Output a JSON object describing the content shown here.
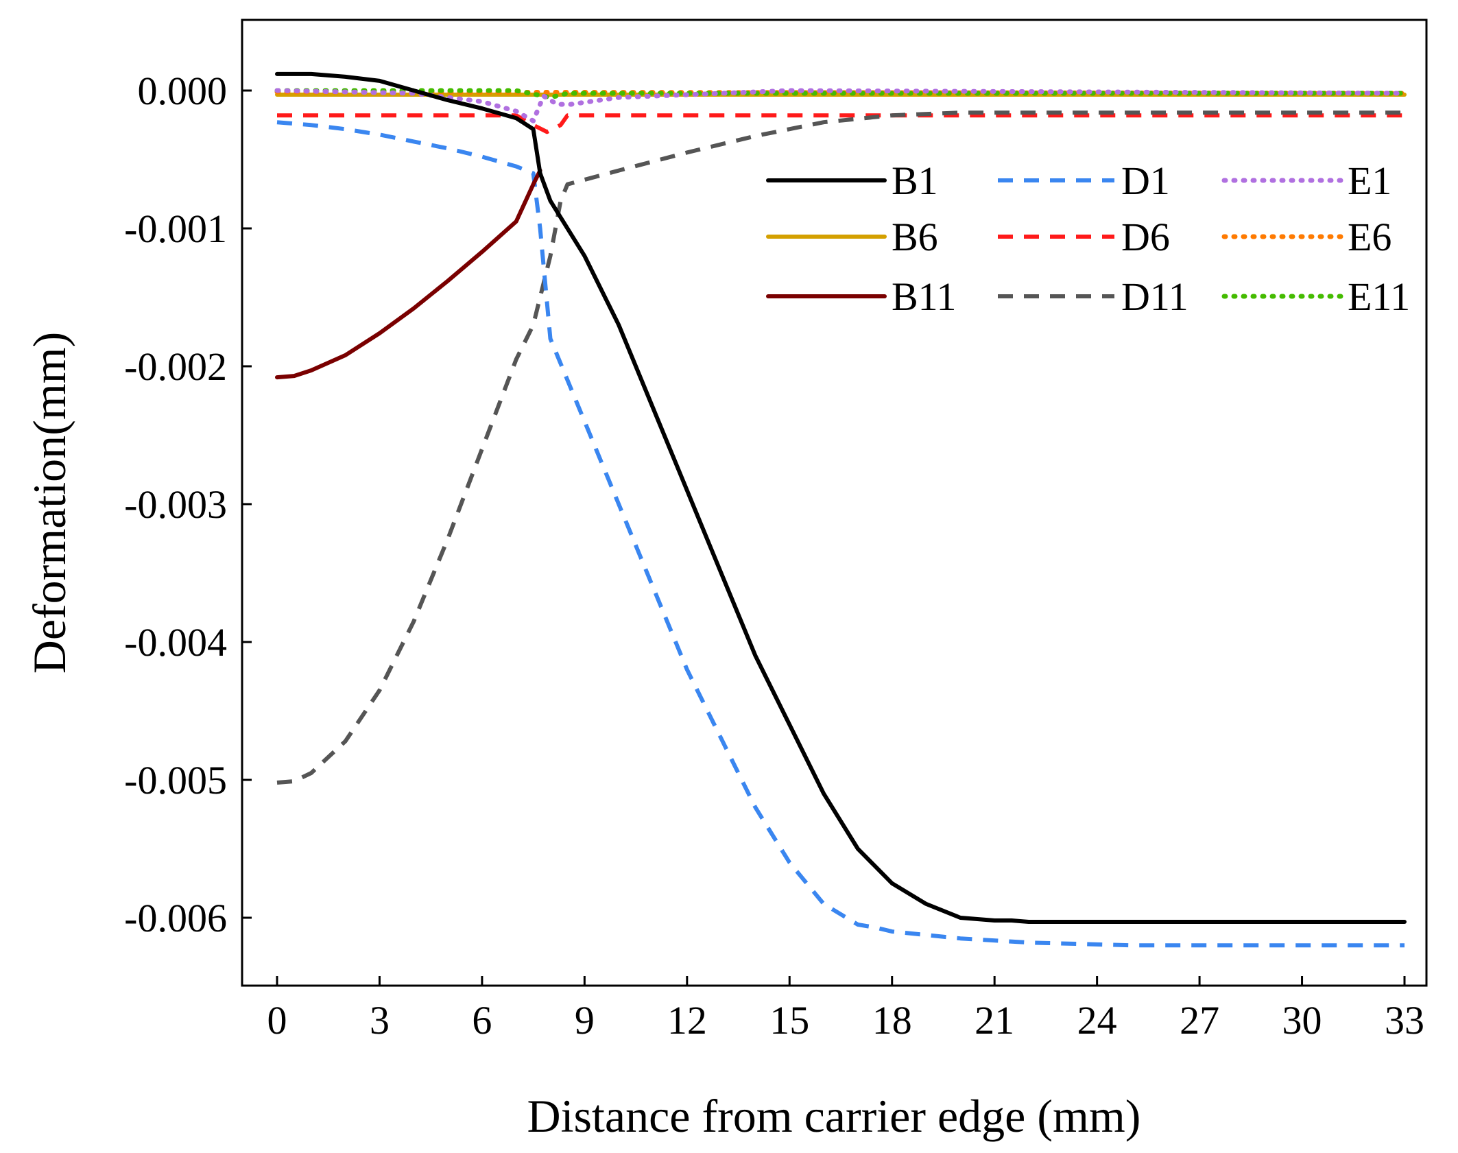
{
  "chart_data": {
    "type": "line",
    "title": "",
    "xlabel": "Distance from carrier edge (mm)",
    "ylabel": "Deformation(mm)",
    "xlim": [
      -1,
      34
    ],
    "ylim": [
      -0.0065,
      0.0005
    ],
    "xticks": [
      0,
      3,
      6,
      9,
      12,
      15,
      18,
      21,
      24,
      27,
      30,
      33
    ],
    "xtick_labels": [
      "0",
      "3",
      "6",
      "9",
      "12",
      "15",
      "18",
      "21",
      "24",
      "27",
      "30",
      "33"
    ],
    "yticks": [
      0.0,
      -0.001,
      -0.002,
      -0.003,
      -0.004,
      -0.005,
      -0.006
    ],
    "ytick_labels": [
      "0.000",
      "-0.001",
      "-0.002",
      "-0.003",
      "-0.004",
      "-0.005",
      "-0.006"
    ],
    "grid": false,
    "legend_position": "top-right",
    "series": [
      {
        "name": "B1",
        "color": "#000000",
        "style": "solid",
        "x": [
          0,
          1,
          2,
          3,
          4,
          5,
          6,
          7,
          7.5,
          7.7,
          8,
          9,
          10,
          11,
          12,
          13,
          14,
          15,
          16,
          17,
          18,
          19,
          20,
          21,
          21.5,
          22,
          25,
          28,
          33
        ],
        "y": [
          0.00012,
          0.00012,
          0.0001,
          7e-05,
          0.0,
          -7e-05,
          -0.00013,
          -0.0002,
          -0.00028,
          -0.0006,
          -0.0008,
          -0.0012,
          -0.0017,
          -0.0023,
          -0.0029,
          -0.0035,
          -0.0041,
          -0.0046,
          -0.0051,
          -0.0055,
          -0.00575,
          -0.0059,
          -0.006,
          -0.00602,
          -0.00602,
          -0.00603,
          -0.00603,
          -0.00603,
          -0.00603
        ]
      },
      {
        "name": "B6",
        "color": "#D4A000",
        "style": "solid",
        "x": [
          0,
          33
        ],
        "y": [
          -3e-05,
          -3e-05
        ]
      },
      {
        "name": "B11",
        "color": "#7A0000",
        "style": "solid",
        "x": [
          0,
          0.5,
          1,
          2,
          3,
          4,
          5,
          6,
          7,
          7.5,
          7.7
        ],
        "y": [
          -0.00208,
          -0.00207,
          -0.00203,
          -0.00192,
          -0.00176,
          -0.00158,
          -0.00138,
          -0.00117,
          -0.00095,
          -0.00068,
          -0.00058
        ]
      },
      {
        "name": "D1",
        "color": "#3A86F0",
        "style": "dashed",
        "x": [
          0,
          1,
          2,
          3,
          4,
          5,
          6,
          7,
          7.5,
          7.7,
          8,
          9,
          10,
          11,
          12,
          13,
          14,
          15,
          16,
          17,
          17.5,
          18,
          20,
          22,
          25,
          33
        ],
        "y": [
          -0.00023,
          -0.00025,
          -0.00028,
          -0.00032,
          -0.00037,
          -0.00042,
          -0.00048,
          -0.00055,
          -0.0006,
          -0.001,
          -0.0018,
          -0.0024,
          -0.003,
          -0.0036,
          -0.0042,
          -0.0047,
          -0.0052,
          -0.0056,
          -0.0059,
          -0.00605,
          -0.00607,
          -0.0061,
          -0.00615,
          -0.00618,
          -0.0062,
          -0.0062
        ]
      },
      {
        "name": "D6",
        "color": "#FF1A1A",
        "style": "dashed",
        "x": [
          0,
          7,
          7.5,
          7.9,
          8.3,
          8.5,
          33
        ],
        "y": [
          -0.00018,
          -0.00018,
          -0.00025,
          -0.0003,
          -0.00025,
          -0.00018,
          -0.00018
        ]
      },
      {
        "name": "D11",
        "color": "#555555",
        "style": "dashed",
        "x": [
          0,
          0.5,
          1,
          2,
          3,
          4,
          5,
          6,
          7,
          7.5,
          8,
          8.3,
          8.5,
          10,
          12,
          14,
          16,
          18,
          20,
          33
        ],
        "y": [
          -0.00502,
          -0.00501,
          -0.00495,
          -0.00472,
          -0.00435,
          -0.00385,
          -0.00325,
          -0.0026,
          -0.00195,
          -0.0017,
          -0.0012,
          -0.0008,
          -0.00068,
          -0.00058,
          -0.00045,
          -0.00033,
          -0.00023,
          -0.00018,
          -0.00016,
          -0.00016
        ]
      },
      {
        "name": "E1",
        "color": "#B070E0",
        "style": "dotted",
        "x": [
          0,
          4,
          6,
          7,
          7.5,
          7.8,
          8.2,
          8.6,
          10,
          15,
          33
        ],
        "y": [
          0.0,
          -2e-05,
          -8e-05,
          -0.00015,
          -0.00022,
          -4e-05,
          -0.0001,
          -0.0001,
          -5e-05,
          0.0,
          -2e-05
        ]
      },
      {
        "name": "E6",
        "color": "#FF7A00",
        "style": "dotted",
        "x": [
          0,
          33
        ],
        "y": [
          -1e-05,
          -2e-05
        ]
      },
      {
        "name": "E11",
        "color": "#44BB00",
        "style": "dotted",
        "x": [
          0,
          7,
          8,
          8.5,
          33
        ],
        "y": [
          0.0,
          0.0,
          -5e-05,
          -2e-05,
          -2e-05
        ]
      }
    ]
  }
}
